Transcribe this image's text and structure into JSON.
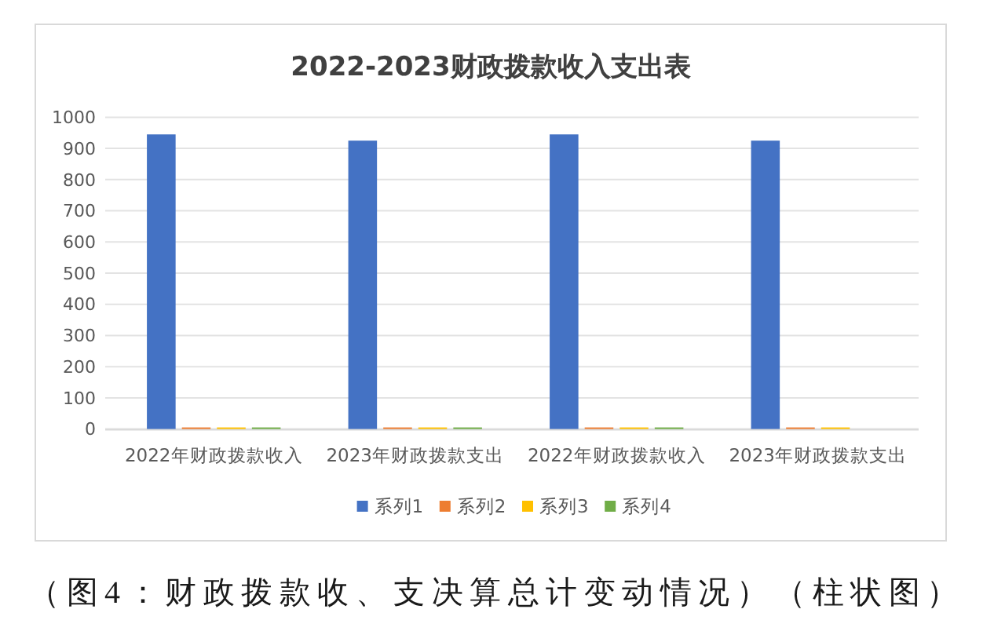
{
  "chart_data": {
    "type": "bar",
    "title": "2022-2023财政拨款收入支出表",
    "categories": [
      "2022年财政拨款收入",
      "2023年财政拨款支出",
      "2022年财政拨款收入",
      "2023年财政拨款支出"
    ],
    "series": [
      {
        "name": "系列1",
        "color": "#4472c4",
        "values": [
          945,
          925,
          945,
          925
        ]
      },
      {
        "name": "系列2",
        "color": "#ed7d31",
        "values": [
          5,
          5,
          5,
          5
        ]
      },
      {
        "name": "系列3",
        "color": "#ffc000",
        "values": [
          5,
          5,
          5,
          5
        ]
      },
      {
        "name": "系列4",
        "color": "#70ad47",
        "values": [
          5,
          5,
          5,
          null
        ]
      }
    ],
    "ylim": [
      0,
      1000
    ],
    "yticks": [
      0,
      100,
      200,
      300,
      400,
      500,
      600,
      700,
      800,
      900,
      1000
    ],
    "grid": "y",
    "legend": "bottom",
    "annotations": [
      "（图4：财政拨款收、支决算总计变动情况）（柱状图）"
    ]
  }
}
